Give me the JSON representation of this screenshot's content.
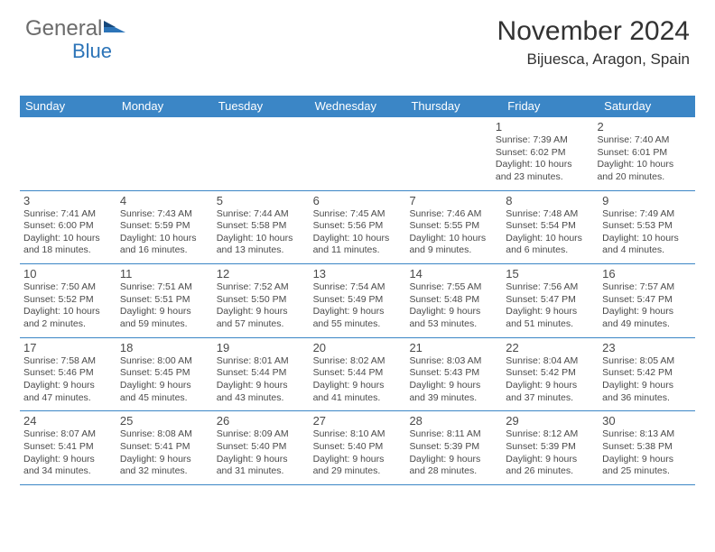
{
  "logo": {
    "text1": "General",
    "text2": "Blue"
  },
  "header": {
    "month_title": "November 2024",
    "location": "Bijuesca, Aragon, Spain"
  },
  "colors": {
    "header_bar": "#3b86c6",
    "header_text": "#ffffff",
    "body_text": "#4a4a4a",
    "rule": "#3b86c6",
    "logo_gray": "#6b6b6b",
    "logo_blue": "#2c74b8"
  },
  "weekdays": [
    "Sunday",
    "Monday",
    "Tuesday",
    "Wednesday",
    "Thursday",
    "Friday",
    "Saturday"
  ],
  "weeks": [
    [
      null,
      null,
      null,
      null,
      null,
      {
        "n": "1",
        "sr": "Sunrise: 7:39 AM",
        "ss": "Sunset: 6:02 PM",
        "d1": "Daylight: 10 hours",
        "d2": "and 23 minutes."
      },
      {
        "n": "2",
        "sr": "Sunrise: 7:40 AM",
        "ss": "Sunset: 6:01 PM",
        "d1": "Daylight: 10 hours",
        "d2": "and 20 minutes."
      }
    ],
    [
      {
        "n": "3",
        "sr": "Sunrise: 7:41 AM",
        "ss": "Sunset: 6:00 PM",
        "d1": "Daylight: 10 hours",
        "d2": "and 18 minutes."
      },
      {
        "n": "4",
        "sr": "Sunrise: 7:43 AM",
        "ss": "Sunset: 5:59 PM",
        "d1": "Daylight: 10 hours",
        "d2": "and 16 minutes."
      },
      {
        "n": "5",
        "sr": "Sunrise: 7:44 AM",
        "ss": "Sunset: 5:58 PM",
        "d1": "Daylight: 10 hours",
        "d2": "and 13 minutes."
      },
      {
        "n": "6",
        "sr": "Sunrise: 7:45 AM",
        "ss": "Sunset: 5:56 PM",
        "d1": "Daylight: 10 hours",
        "d2": "and 11 minutes."
      },
      {
        "n": "7",
        "sr": "Sunrise: 7:46 AM",
        "ss": "Sunset: 5:55 PM",
        "d1": "Daylight: 10 hours",
        "d2": "and 9 minutes."
      },
      {
        "n": "8",
        "sr": "Sunrise: 7:48 AM",
        "ss": "Sunset: 5:54 PM",
        "d1": "Daylight: 10 hours",
        "d2": "and 6 minutes."
      },
      {
        "n": "9",
        "sr": "Sunrise: 7:49 AM",
        "ss": "Sunset: 5:53 PM",
        "d1": "Daylight: 10 hours",
        "d2": "and 4 minutes."
      }
    ],
    [
      {
        "n": "10",
        "sr": "Sunrise: 7:50 AM",
        "ss": "Sunset: 5:52 PM",
        "d1": "Daylight: 10 hours",
        "d2": "and 2 minutes."
      },
      {
        "n": "11",
        "sr": "Sunrise: 7:51 AM",
        "ss": "Sunset: 5:51 PM",
        "d1": "Daylight: 9 hours",
        "d2": "and 59 minutes."
      },
      {
        "n": "12",
        "sr": "Sunrise: 7:52 AM",
        "ss": "Sunset: 5:50 PM",
        "d1": "Daylight: 9 hours",
        "d2": "and 57 minutes."
      },
      {
        "n": "13",
        "sr": "Sunrise: 7:54 AM",
        "ss": "Sunset: 5:49 PM",
        "d1": "Daylight: 9 hours",
        "d2": "and 55 minutes."
      },
      {
        "n": "14",
        "sr": "Sunrise: 7:55 AM",
        "ss": "Sunset: 5:48 PM",
        "d1": "Daylight: 9 hours",
        "d2": "and 53 minutes."
      },
      {
        "n": "15",
        "sr": "Sunrise: 7:56 AM",
        "ss": "Sunset: 5:47 PM",
        "d1": "Daylight: 9 hours",
        "d2": "and 51 minutes."
      },
      {
        "n": "16",
        "sr": "Sunrise: 7:57 AM",
        "ss": "Sunset: 5:47 PM",
        "d1": "Daylight: 9 hours",
        "d2": "and 49 minutes."
      }
    ],
    [
      {
        "n": "17",
        "sr": "Sunrise: 7:58 AM",
        "ss": "Sunset: 5:46 PM",
        "d1": "Daylight: 9 hours",
        "d2": "and 47 minutes."
      },
      {
        "n": "18",
        "sr": "Sunrise: 8:00 AM",
        "ss": "Sunset: 5:45 PM",
        "d1": "Daylight: 9 hours",
        "d2": "and 45 minutes."
      },
      {
        "n": "19",
        "sr": "Sunrise: 8:01 AM",
        "ss": "Sunset: 5:44 PM",
        "d1": "Daylight: 9 hours",
        "d2": "and 43 minutes."
      },
      {
        "n": "20",
        "sr": "Sunrise: 8:02 AM",
        "ss": "Sunset: 5:44 PM",
        "d1": "Daylight: 9 hours",
        "d2": "and 41 minutes."
      },
      {
        "n": "21",
        "sr": "Sunrise: 8:03 AM",
        "ss": "Sunset: 5:43 PM",
        "d1": "Daylight: 9 hours",
        "d2": "and 39 minutes."
      },
      {
        "n": "22",
        "sr": "Sunrise: 8:04 AM",
        "ss": "Sunset: 5:42 PM",
        "d1": "Daylight: 9 hours",
        "d2": "and 37 minutes."
      },
      {
        "n": "23",
        "sr": "Sunrise: 8:05 AM",
        "ss": "Sunset: 5:42 PM",
        "d1": "Daylight: 9 hours",
        "d2": "and 36 minutes."
      }
    ],
    [
      {
        "n": "24",
        "sr": "Sunrise: 8:07 AM",
        "ss": "Sunset: 5:41 PM",
        "d1": "Daylight: 9 hours",
        "d2": "and 34 minutes."
      },
      {
        "n": "25",
        "sr": "Sunrise: 8:08 AM",
        "ss": "Sunset: 5:41 PM",
        "d1": "Daylight: 9 hours",
        "d2": "and 32 minutes."
      },
      {
        "n": "26",
        "sr": "Sunrise: 8:09 AM",
        "ss": "Sunset: 5:40 PM",
        "d1": "Daylight: 9 hours",
        "d2": "and 31 minutes."
      },
      {
        "n": "27",
        "sr": "Sunrise: 8:10 AM",
        "ss": "Sunset: 5:40 PM",
        "d1": "Daylight: 9 hours",
        "d2": "and 29 minutes."
      },
      {
        "n": "28",
        "sr": "Sunrise: 8:11 AM",
        "ss": "Sunset: 5:39 PM",
        "d1": "Daylight: 9 hours",
        "d2": "and 28 minutes."
      },
      {
        "n": "29",
        "sr": "Sunrise: 8:12 AM",
        "ss": "Sunset: 5:39 PM",
        "d1": "Daylight: 9 hours",
        "d2": "and 26 minutes."
      },
      {
        "n": "30",
        "sr": "Sunrise: 8:13 AM",
        "ss": "Sunset: 5:38 PM",
        "d1": "Daylight: 9 hours",
        "d2": "and 25 minutes."
      }
    ]
  ]
}
